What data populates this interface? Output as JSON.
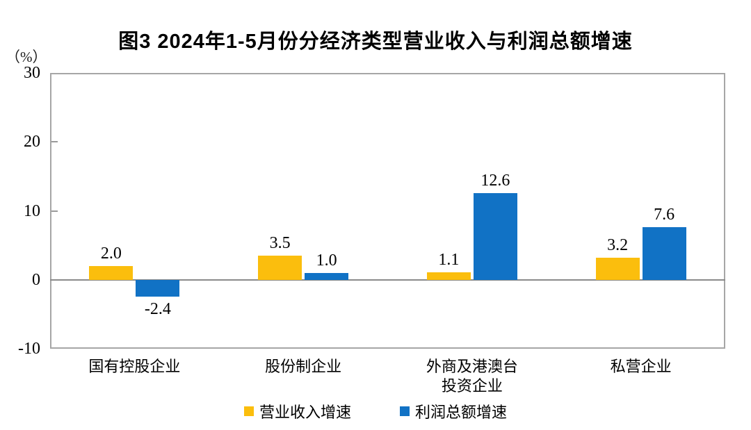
{
  "chart_data": {
    "type": "bar",
    "title": "图3  2024年1-5月份分经济类型营业收入与利润总额增速",
    "unit_label": "（%）",
    "categories": [
      "国有控股企业",
      "股份制企业",
      "外商及港澳台\n投资企业",
      "私营企业"
    ],
    "series": [
      {
        "name": "营业收入增速",
        "color": "#FBBE0D",
        "values": [
          2.0,
          3.5,
          1.1,
          3.2
        ],
        "value_labels": [
          "2.0",
          "3.5",
          "1.1",
          "3.2"
        ]
      },
      {
        "name": "利润总额增速",
        "color": "#1172C5",
        "values": [
          -2.4,
          1.0,
          12.6,
          7.6
        ],
        "value_labels": [
          "-2.4",
          "1.0",
          "12.6",
          "7.6"
        ]
      }
    ],
    "ylim": [
      -10,
      30
    ],
    "yticks": [
      30,
      20,
      10,
      0,
      -10
    ],
    "ytick_labels": [
      "30",
      "20",
      "10",
      "0",
      "-10"
    ],
    "grid": false,
    "legend_position": "bottom"
  },
  "colors": {
    "axis_border": "#a6a6a6",
    "zero_line": "#8a8a8a",
    "tick_mark": "#9a9a9a",
    "text": "#000000",
    "background": "#ffffff"
  }
}
